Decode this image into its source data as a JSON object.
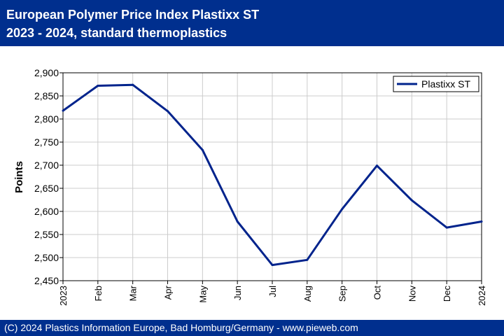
{
  "header": {
    "title_line1": "European Polymer Price Index Plastixx ST",
    "title_line2": "2023 - 2024, standard thermoplastics",
    "background": "#002f8e"
  },
  "footer": {
    "text": "(C) 2024 Plastics Information Europe, Bad Homburg/Germany - www.pieweb.com"
  },
  "chart_data": {
    "type": "line",
    "title": "European Polymer Price Index Plastixx ST",
    "subtitle": "2023 - 2024, standard thermoplastics",
    "xlabel": "",
    "ylabel": "Points",
    "categories": [
      "2023",
      "Feb",
      "Mar",
      "Apr",
      "May",
      "Jun",
      "Jul",
      "Aug",
      "Sep",
      "Oct",
      "Nov",
      "Dec",
      "2024"
    ],
    "series": [
      {
        "name": "Plastixx ST",
        "color": "#00238c",
        "values": [
          2818,
          2872,
          2874,
          2817,
          2733,
          2578,
          2484,
          2495,
          2605,
          2699,
          2624,
          2565,
          2578
        ]
      }
    ],
    "ylim": [
      2450,
      2900
    ],
    "yticks": [
      2450,
      2500,
      2550,
      2600,
      2650,
      2700,
      2750,
      2800,
      2850,
      2900
    ],
    "ytick_labels": [
      "2,450",
      "2,500",
      "2,550",
      "2,600",
      "2,650",
      "2,700",
      "2,750",
      "2,800",
      "2,850",
      "2,900"
    ],
    "grid": true,
    "legend": "top-right"
  }
}
